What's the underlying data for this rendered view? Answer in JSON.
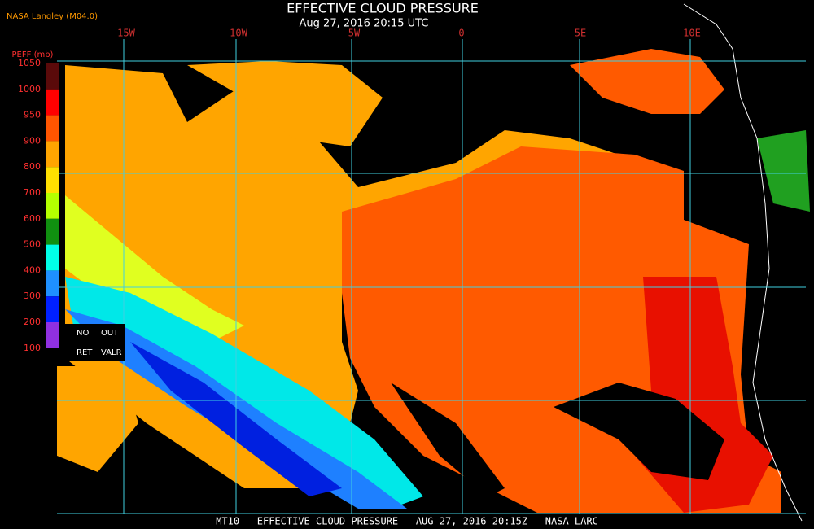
{
  "header": {
    "org": "NASA Langley (M04.0)",
    "title": "EFFECTIVE CLOUD PRESSURE",
    "subtitle": "Aug 27, 2016 20:15 UTC"
  },
  "longitude_labels": [
    "15W",
    "10W",
    "5W",
    "0",
    "5E",
    "10E"
  ],
  "colorbar": {
    "title": "PEFF (mb)",
    "labels": [
      1050,
      1000,
      950,
      900,
      800,
      700,
      600,
      500,
      400,
      300,
      200,
      100
    ],
    "colors": [
      "#5a0a0a",
      "#ff0000",
      "#ff5500",
      "#ffa500",
      "#ffe000",
      "#b4ff00",
      "#109010",
      "#00ffe8",
      "#1e90ff",
      "#0020ff",
      "#9030e0"
    ],
    "notes": [
      "NO",
      "OUT",
      "RET",
      "VALR"
    ]
  },
  "footer": "MT10   EFFECTIVE CLOUD PRESSURE   AUG 27, 2016 20:15Z   NASA LARC"
}
